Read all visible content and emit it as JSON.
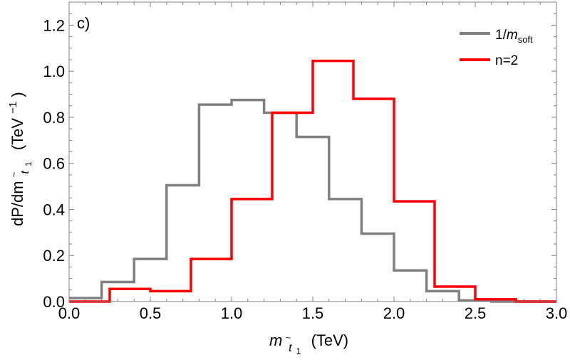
{
  "chart_data": {
    "type": "histogram",
    "panel_label": "c)",
    "xlabel": "m_t̃1 (TeV)",
    "xlabel_parts": {
      "symbol": "m",
      "sub_base": "t",
      "sub_tilde": "~",
      "sub_index": "1",
      "units": "(TeV)"
    },
    "ylabel": "dP/dm_t̃1 (TeV^-1)",
    "ylabel_parts": {
      "prefix": "dP/dm",
      "sub_base": "t",
      "sub_tilde": "~",
      "sub_index": "1",
      "units_open": "(TeV",
      "units_exp": "−1",
      "units_close": ")"
    },
    "xlim": [
      0,
      3
    ],
    "ylim": [
      0,
      1.3
    ],
    "xticks": [
      0.0,
      0.5,
      1.0,
      1.5,
      2.0,
      2.5,
      3.0
    ],
    "xtick_labels": [
      "0.0",
      "0.5",
      "1.0",
      "1.5",
      "2.0",
      "2.5",
      "3.0"
    ],
    "yticks": [
      0.0,
      0.2,
      0.4,
      0.6,
      0.8,
      1.0,
      1.2
    ],
    "ytick_labels": [
      "0.0",
      "0.2",
      "0.4",
      "0.6",
      "0.8",
      "1.0",
      "1.2"
    ],
    "legend_position": "top-right",
    "series": [
      {
        "name": "1/m_soft",
        "legend_parts": {
          "prefix": "1/",
          "italic": "m",
          "sub": "soft"
        },
        "color": "#808080",
        "edges": [
          0,
          0.2,
          0.4,
          0.6,
          0.8,
          1.0,
          1.2,
          1.4,
          1.6,
          1.8,
          2.0,
          2.2,
          2.4,
          2.6,
          2.8,
          3.0
        ],
        "values": [
          0.015,
          0.085,
          0.185,
          0.505,
          0.855,
          0.875,
          0.82,
          0.715,
          0.445,
          0.295,
          0.135,
          0.045,
          0.005,
          0.0,
          0.0
        ]
      },
      {
        "name": "n=2",
        "legend_parts": {
          "prefix": "n=2",
          "italic": "",
          "sub": ""
        },
        "color": "#ff0000",
        "edges": [
          0,
          0.25,
          0.5,
          0.75,
          1.0,
          1.25,
          1.5,
          1.75,
          2.0,
          2.25,
          2.5,
          2.75,
          3.0
        ],
        "values": [
          0.0,
          0.055,
          0.045,
          0.185,
          0.445,
          0.82,
          1.045,
          0.88,
          0.435,
          0.065,
          0.01,
          0.0
        ]
      }
    ]
  }
}
